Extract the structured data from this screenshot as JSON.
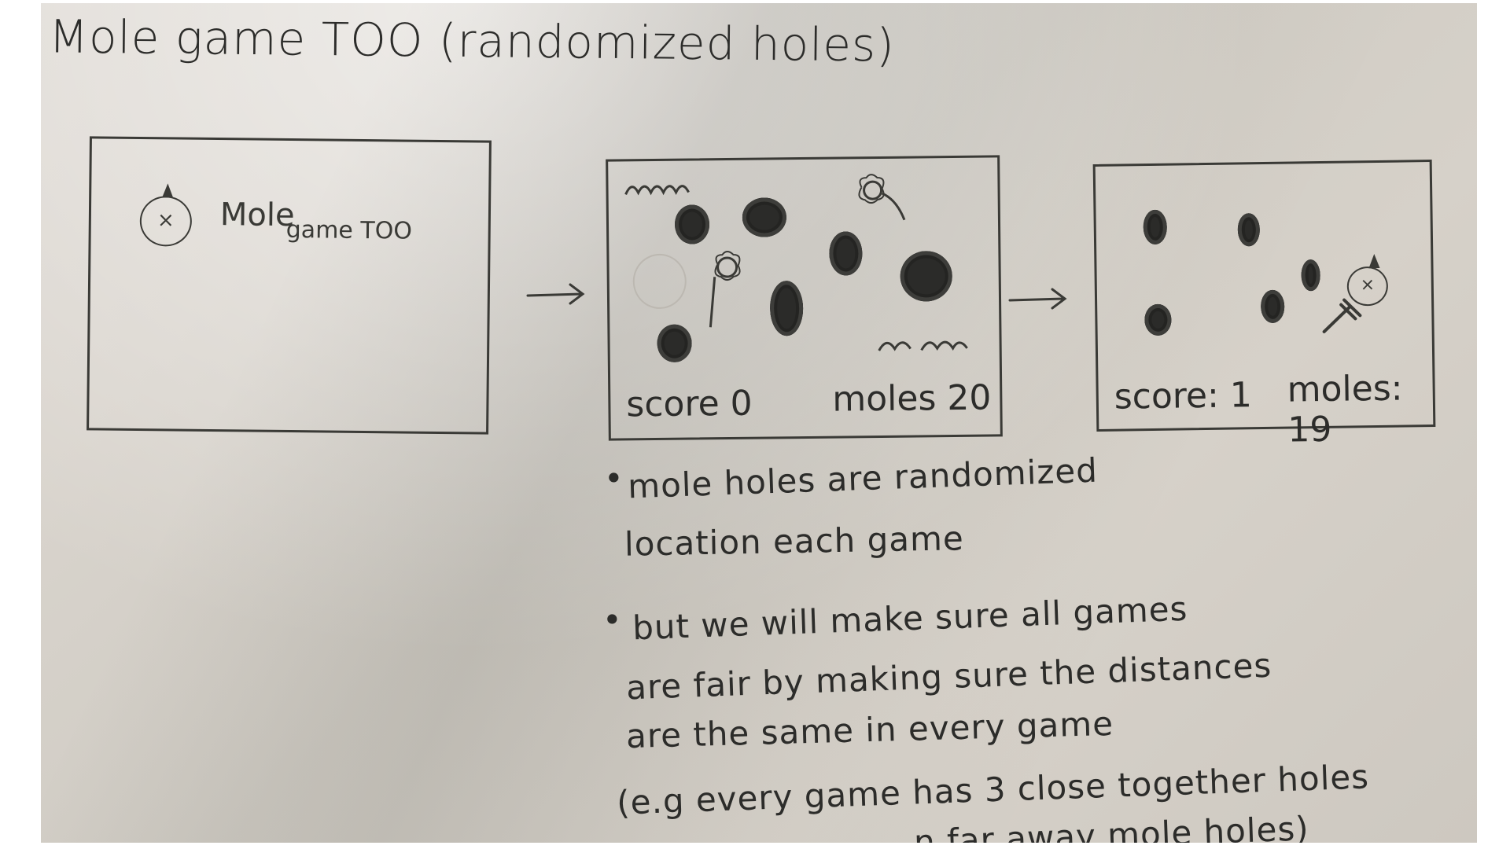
{
  "title": "Mole game TOO (randomized holes)",
  "frames": {
    "title_screen": {
      "logo_word_1": "Mole",
      "logo_word_2": "game TOO",
      "face_glyph": "×"
    },
    "play_screen": {
      "score_text": "score 0",
      "moles_text": "moles 20"
    },
    "end_screen": {
      "score_text": "score: 1",
      "moles_text": "moles: 19",
      "face_glyph": "×"
    }
  },
  "notes": {
    "bullet_1_line_1": "mole holes are randomized",
    "bullet_1_line_2": "location each game",
    "bullet_2_line_1": "but we will make sure all games",
    "bullet_2_line_2": "are fair by making sure the distances",
    "bullet_2_line_3": "are the same in every game",
    "example_line_1": "(e.g every game has 3 close together holes",
    "example_line_2": "n far away mole holes)"
  },
  "bullet_glyph": "•",
  "colors": {
    "paper": "#d9d4cd",
    "ink": "#2c2c2a",
    "hole": "#2b2b29"
  }
}
